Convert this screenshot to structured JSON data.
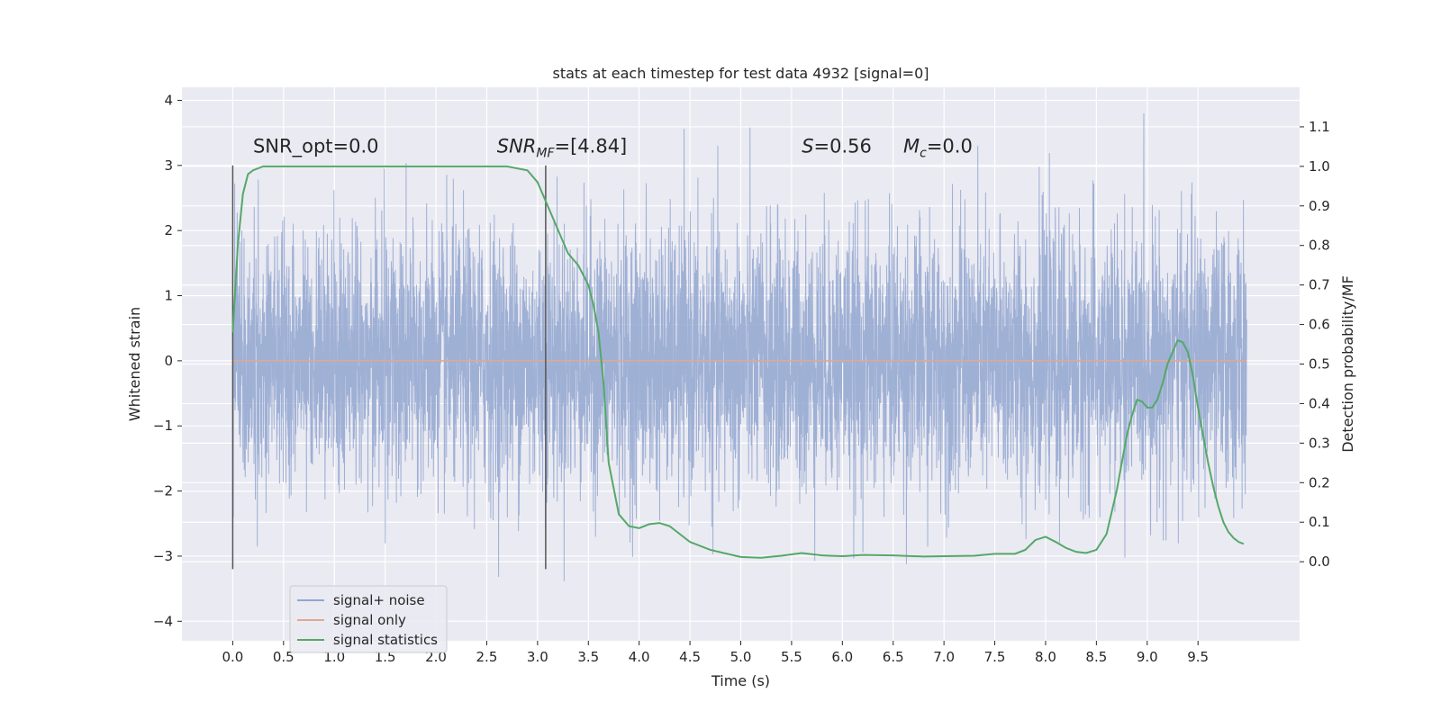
{
  "chart_data": {
    "type": "line",
    "title": "stats at each timestep for test data 4932 [signal=0]",
    "xlabel": "Time (s)",
    "ylabel_left": "Whitened strain",
    "ylabel_right": "Detection probability/MF",
    "xlim": [
      -0.5,
      10.5
    ],
    "ylim_left": [
      -4.3,
      4.2
    ],
    "ylim_right": [
      -0.2,
      1.2
    ],
    "x_ticks": [
      "0.0",
      "0.5",
      "1.0",
      "1.5",
      "2.0",
      "2.5",
      "3.0",
      "3.5",
      "4.0",
      "4.5",
      "5.0",
      "5.5",
      "6.0",
      "6.5",
      "7.0",
      "7.5",
      "8.0",
      "8.5",
      "9.0",
      "9.5"
    ],
    "y_ticks_left": [
      "4",
      "3",
      "2",
      "1",
      "0",
      "−1",
      "−2",
      "−3",
      "−4"
    ],
    "y_ticks_right": [
      "1.1",
      "1.0",
      "0.9",
      "0.8",
      "0.7",
      "0.6",
      "0.5",
      "0.4",
      "0.3",
      "0.2",
      "0.1",
      "0.0"
    ],
    "grid": true,
    "legend": {
      "placement": "lower-left"
    },
    "annotations": {
      "snr_opt": "SNR_opt=0.0",
      "snr_mf_main": "SNR",
      "snr_mf_sub": "MF",
      "snr_mf_value": "=[4.84]",
      "s_symbol": "S",
      "s_value": "=0.56",
      "mc_main": "M",
      "mc_sub": "c",
      "mc_value": "=0.0"
    },
    "vertical_lines_x": [
      0.0,
      3.08
    ],
    "series": [
      {
        "name": "signal+ noise",
        "color": "#92a6d0",
        "axis": "left",
        "x_range": [
          0.0,
          9.98
        ],
        "envelope_y": [
          -3.8,
          3.8
        ]
      },
      {
        "name": "signal only",
        "color": "#e0a890",
        "axis": "left",
        "x": [
          0.0,
          9.98
        ],
        "y": [
          0.0,
          0.0
        ]
      },
      {
        "name": "signal statistics",
        "color": "#55a868",
        "axis": "right",
        "x": [
          0.0,
          0.05,
          0.1,
          0.15,
          0.2,
          0.3,
          0.5,
          1.0,
          2.0,
          2.7,
          2.9,
          3.0,
          3.1,
          3.2,
          3.3,
          3.4,
          3.5,
          3.55,
          3.6,
          3.65,
          3.7,
          3.8,
          3.9,
          4.0,
          4.1,
          4.2,
          4.3,
          4.4,
          4.5,
          4.7,
          5.0,
          5.2,
          5.4,
          5.6,
          5.8,
          6.0,
          6.2,
          6.5,
          6.8,
          7.0,
          7.3,
          7.5,
          7.7,
          7.8,
          7.9,
          8.0,
          8.1,
          8.2,
          8.3,
          8.4,
          8.5,
          8.6,
          8.7,
          8.8,
          8.85,
          8.9,
          8.95,
          9.0,
          9.05,
          9.1,
          9.15,
          9.2,
          9.25,
          9.3,
          9.35,
          9.4,
          9.45,
          9.5,
          9.55,
          9.6,
          9.65,
          9.7,
          9.75,
          9.8,
          9.85,
          9.9,
          9.95
        ],
        "y": [
          0.58,
          0.8,
          0.93,
          0.98,
          0.99,
          1.0,
          1.0,
          1.0,
          1.0,
          1.0,
          0.99,
          0.96,
          0.9,
          0.84,
          0.78,
          0.75,
          0.7,
          0.65,
          0.58,
          0.45,
          0.25,
          0.12,
          0.09,
          0.085,
          0.095,
          0.098,
          0.09,
          0.07,
          0.05,
          0.03,
          0.012,
          0.01,
          0.015,
          0.022,
          0.016,
          0.014,
          0.017,
          0.016,
          0.013,
          0.014,
          0.015,
          0.02,
          0.02,
          0.03,
          0.055,
          0.063,
          0.05,
          0.035,
          0.025,
          0.022,
          0.03,
          0.07,
          0.18,
          0.32,
          0.37,
          0.41,
          0.405,
          0.39,
          0.39,
          0.41,
          0.45,
          0.5,
          0.53,
          0.56,
          0.555,
          0.53,
          0.47,
          0.39,
          0.32,
          0.25,
          0.19,
          0.14,
          0.1,
          0.075,
          0.06,
          0.05,
          0.045
        ]
      }
    ]
  }
}
